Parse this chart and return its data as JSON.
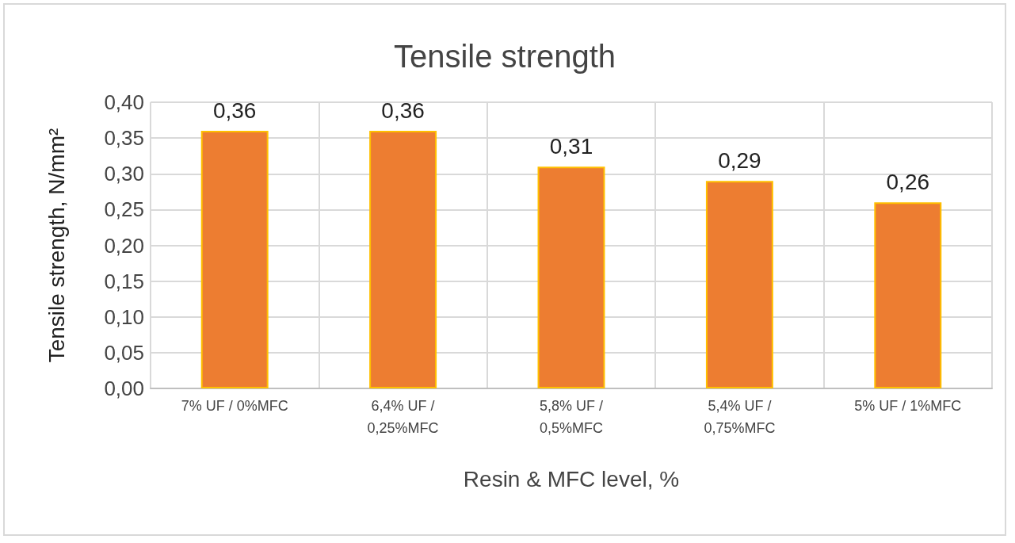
{
  "chart_data": {
    "type": "bar",
    "title": "Tensile strength",
    "xlabel": "Resin & MFC level, %",
    "ylabel": "Tensile strength, N/mm²",
    "categories": [
      "7% UF / 0%MFC",
      "6,4% UF / 0,25%MFC",
      "5,8% UF / 0,5%MFC",
      "5,4% UF / 0,75%MFC",
      "5% UF / 1%MFC"
    ],
    "values": [
      0.36,
      0.36,
      0.31,
      0.29,
      0.26
    ],
    "value_labels": [
      "0,36",
      "0,36",
      "0,31",
      "0,29",
      "0,26"
    ],
    "color": "#ed7d31",
    "ylim": [
      0,
      0.4
    ],
    "yticks": [
      {
        "value": 0,
        "label": "0,00"
      },
      {
        "value": 0.05,
        "label": "0,05"
      },
      {
        "value": 0.1,
        "label": "0,10"
      },
      {
        "value": 0.15,
        "label": "0,15"
      },
      {
        "value": 0.2,
        "label": "0,20"
      },
      {
        "value": 0.25,
        "label": "0,25"
      },
      {
        "value": 0.3,
        "label": "0,30"
      },
      {
        "value": 0.35,
        "label": "0,35"
      },
      {
        "value": 0.4,
        "label": "0,40"
      }
    ],
    "grid": true
  }
}
